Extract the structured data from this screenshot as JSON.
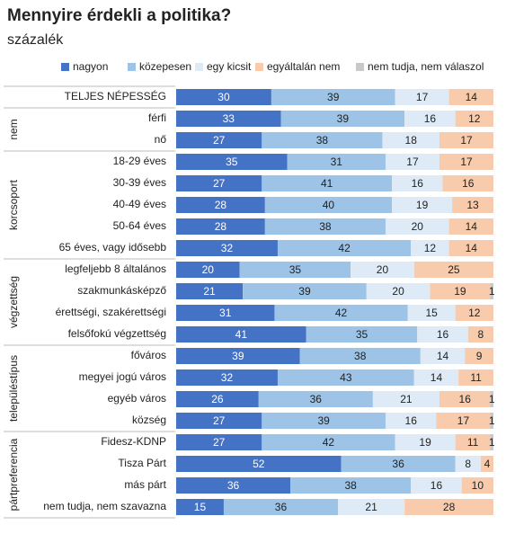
{
  "chart_data": {
    "type": "stacked-bar-horizontal",
    "title": "Mennyire érdekli a politika?",
    "subtitle": "százalék",
    "groups": [
      {
        "name": null,
        "categories": [
          "TELJES NÉPESSÉG"
        ]
      },
      {
        "name": "nem",
        "categories": [
          "férfi",
          "nő"
        ]
      },
      {
        "name": "korcsoport",
        "categories": [
          "18-29 éves",
          "30-39 éves",
          "40-49 éves",
          "50-64 éves",
          "65 éves, vagy idősebb"
        ]
      },
      {
        "name": "végzettség",
        "categories": [
          "legfeljebb 8 általános",
          "szakmunkásképző",
          "érettségi, szakérettségi",
          "felsőfokú végzettség"
        ]
      },
      {
        "name": "településtípus",
        "categories": [
          "főváros",
          "megyei jogú város",
          "egyéb város",
          "község"
        ]
      },
      {
        "name": "pártpreferencia",
        "categories": [
          "Fidesz-KDNP",
          "Tisza Párt",
          "más párt",
          "nem tudja, nem szavazna"
        ]
      }
    ],
    "series": [
      {
        "name": "nagyon",
        "color": "#4472c4",
        "values": [
          30,
          33,
          27,
          35,
          27,
          28,
          28,
          32,
          20,
          21,
          31,
          41,
          39,
          32,
          26,
          27,
          27,
          52,
          36,
          15
        ]
      },
      {
        "name": "közepesen",
        "color": "#9dc3e6",
        "values": [
          39,
          39,
          38,
          31,
          41,
          40,
          38,
          42,
          35,
          39,
          42,
          35,
          38,
          43,
          36,
          39,
          42,
          36,
          38,
          36
        ]
      },
      {
        "name": "egy kicsit",
        "color": "#deebf7",
        "values": [
          17,
          16,
          18,
          17,
          16,
          19,
          20,
          12,
          20,
          20,
          15,
          16,
          14,
          14,
          21,
          16,
          19,
          8,
          16,
          21
        ]
      },
      {
        "name": "egyáltalán nem",
        "color": "#f8cbad",
        "values": [
          14,
          12,
          17,
          17,
          16,
          13,
          14,
          14,
          25,
          19,
          12,
          8,
          9,
          11,
          16,
          17,
          11,
          4,
          10,
          28
        ]
      },
      {
        "name": "nem tudja, nem válaszol",
        "color": "#c9c9c9",
        "values": [
          null,
          null,
          null,
          null,
          null,
          null,
          null,
          null,
          null,
          1,
          null,
          null,
          null,
          null,
          1,
          1,
          1,
          null,
          null,
          null
        ]
      }
    ],
    "xlim": [
      0,
      100
    ]
  }
}
